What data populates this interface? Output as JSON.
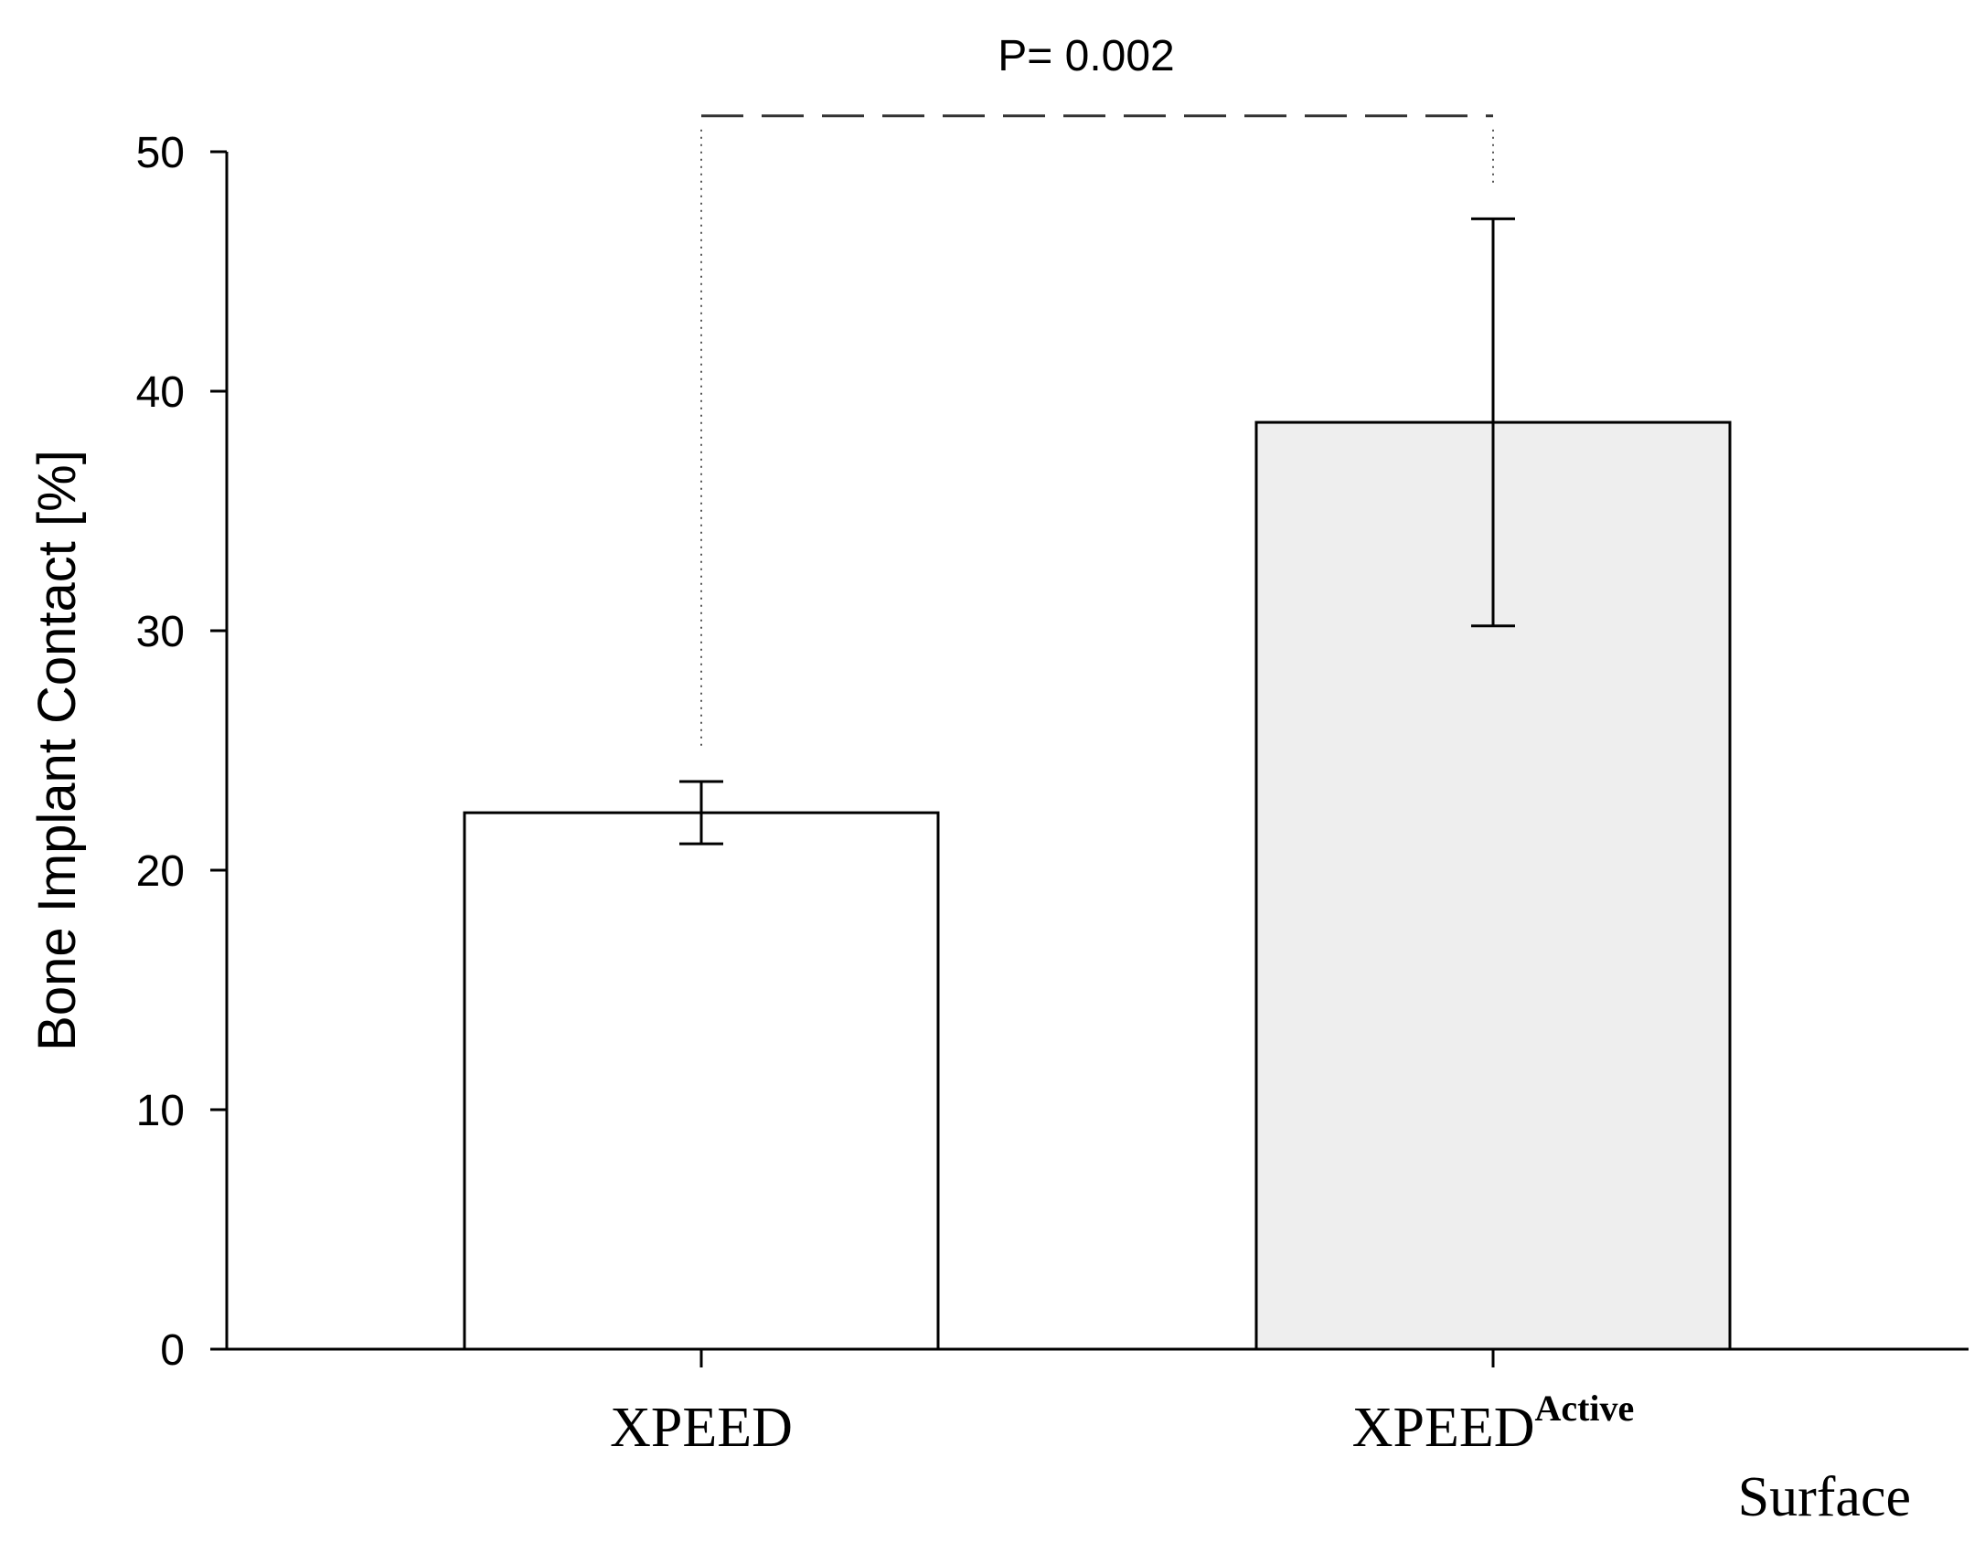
{
  "chart_data": {
    "type": "bar",
    "title": "",
    "xlabel": "Surface",
    "ylabel": "Bone Implant Contact [%]",
    "ylim": [
      0,
      50
    ],
    "yticks": [
      0,
      10,
      20,
      30,
      40,
      50
    ],
    "grid": false,
    "categories": [
      {
        "base": "XPEED",
        "sup": ""
      },
      {
        "base": "XPEED",
        "sup": "Active"
      }
    ],
    "values": [
      22.4,
      38.7
    ],
    "error_upper": [
      23.7,
      47.2
    ],
    "error_lower": [
      21.1,
      30.2
    ],
    "bar_colors": [
      "#ffffff",
      "#eeeeee"
    ],
    "significance": {
      "label": "P= 0.002",
      "between": [
        0,
        1
      ],
      "bracket_level": 51.5
    }
  }
}
